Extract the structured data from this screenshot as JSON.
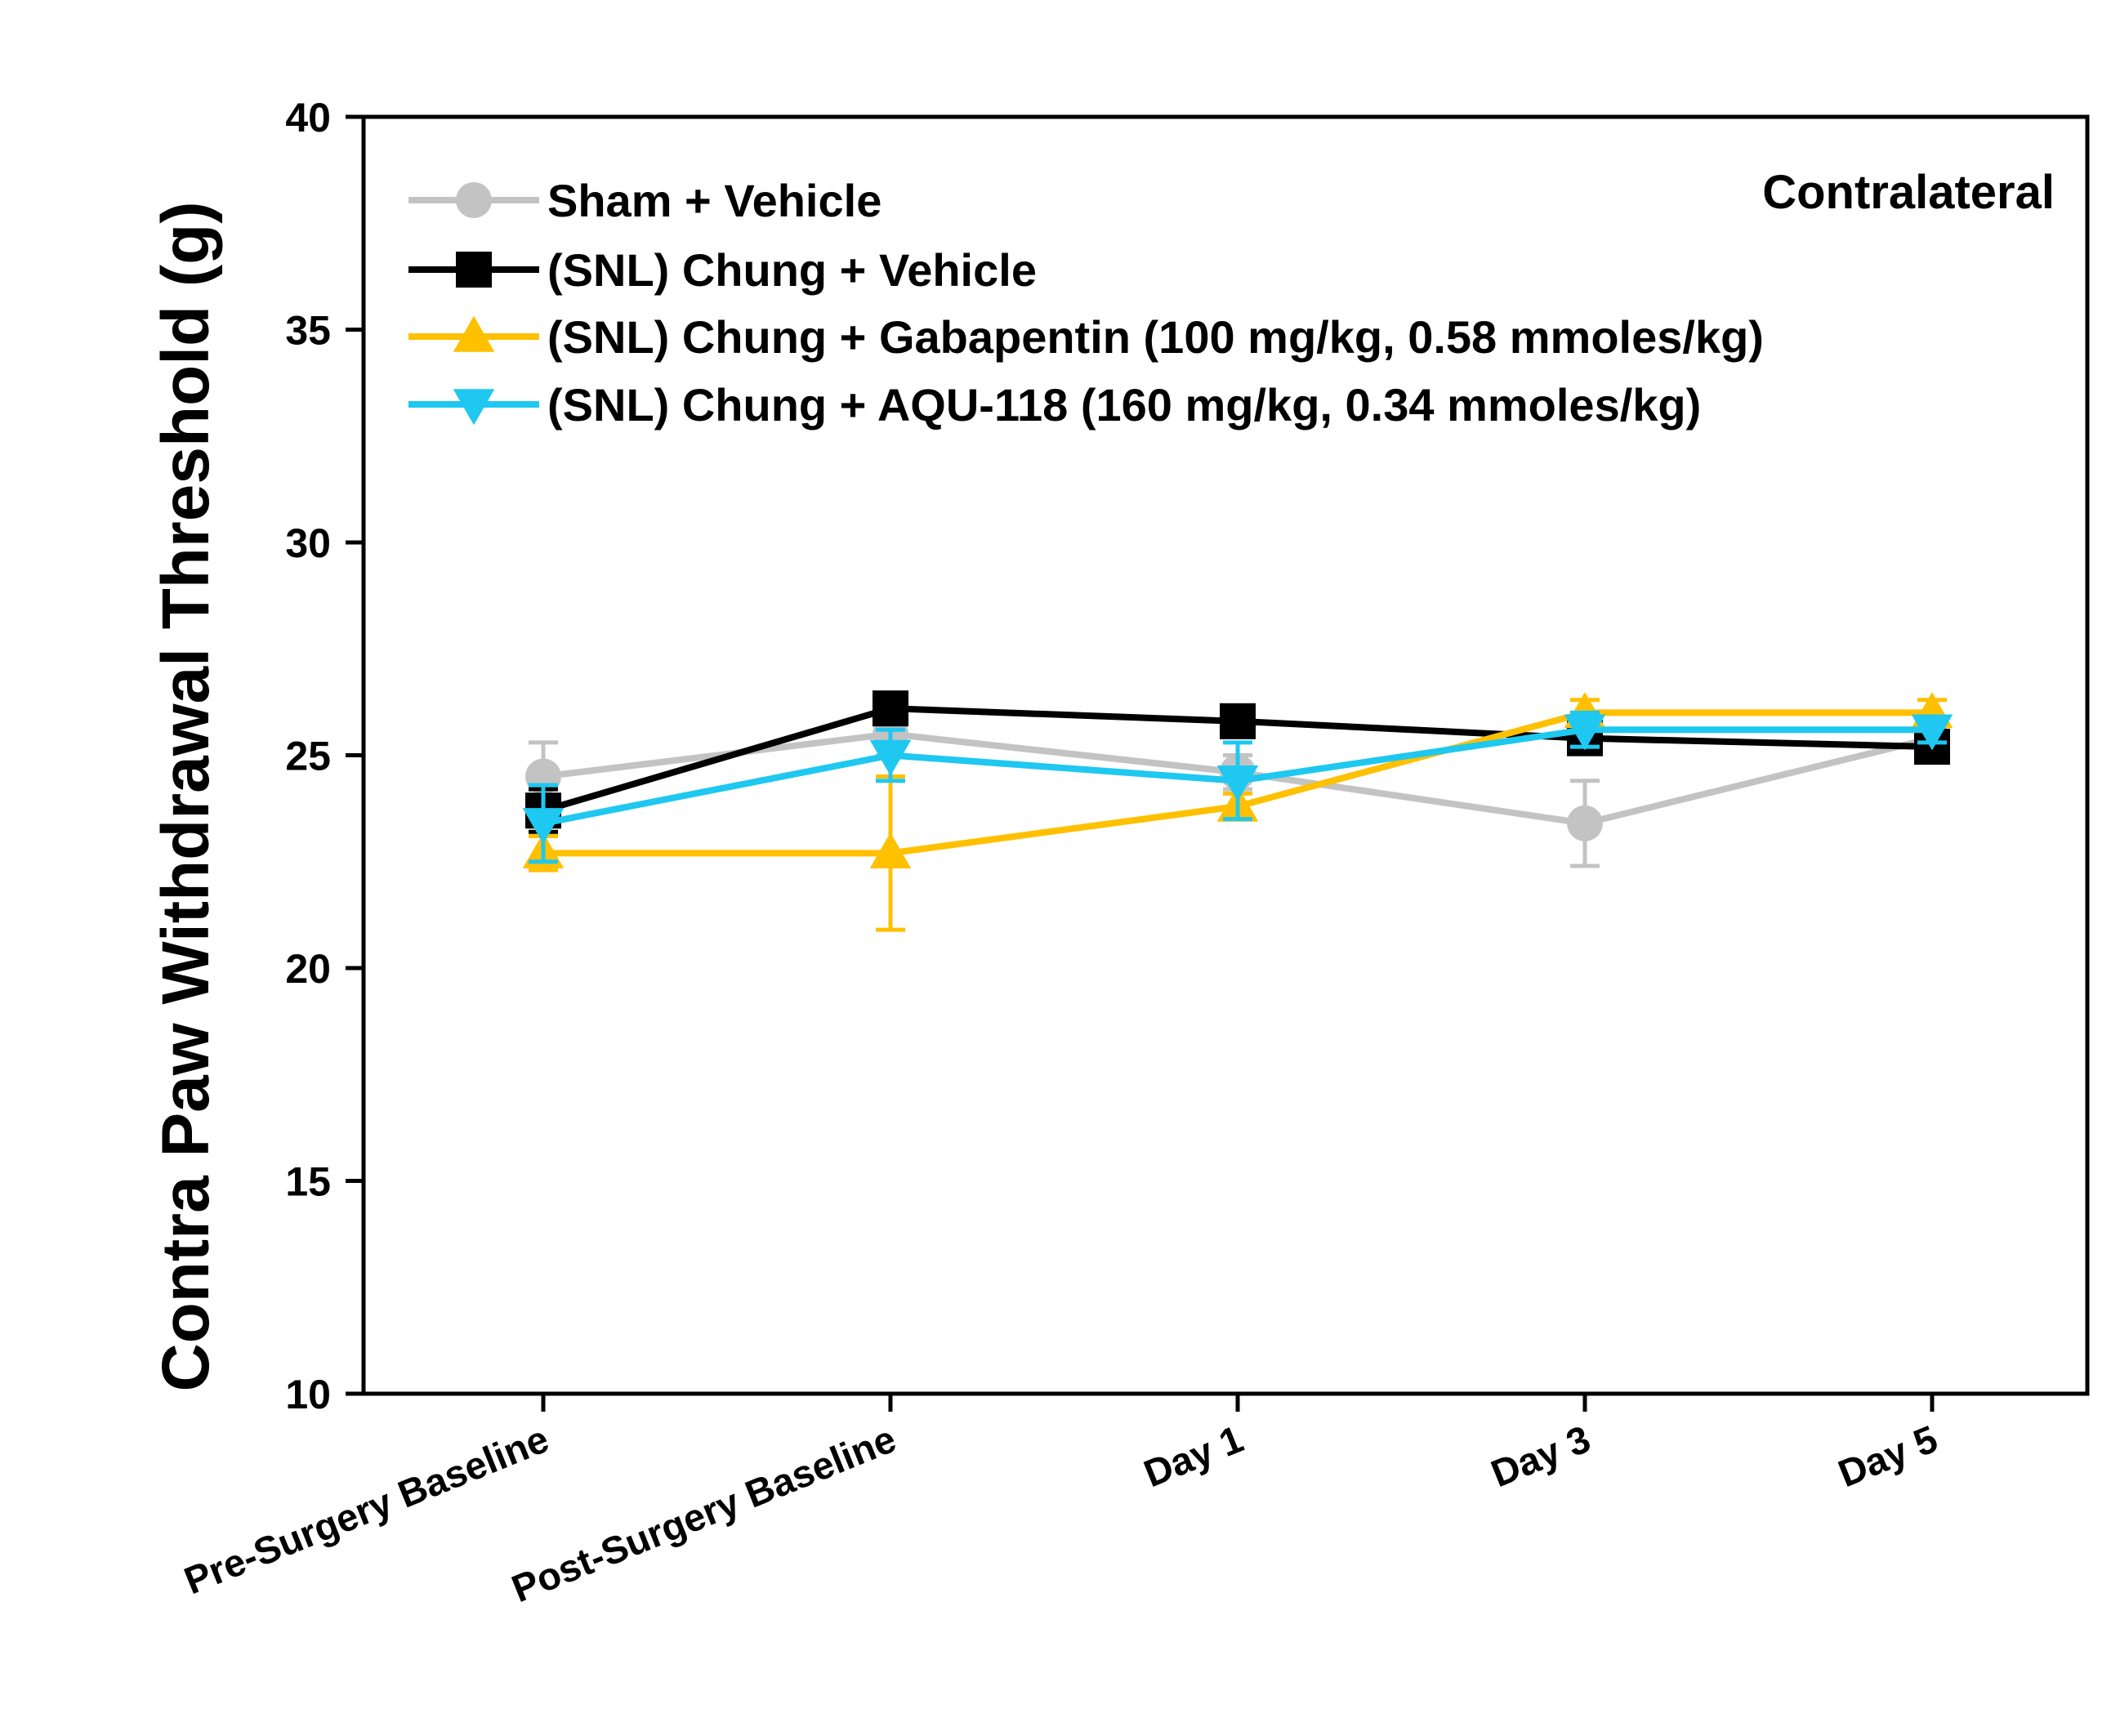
{
  "chart_data": {
    "type": "line",
    "ylabel": "Contra Paw Withdrawal Threshold (g)",
    "xlabel": "",
    "annotation": "Contralateral",
    "ylim": [
      10,
      40
    ],
    "yticks": [
      "10",
      "15",
      "20",
      "25",
      "30",
      "35",
      "40"
    ],
    "categories": [
      "Pre-Surgery Baseline",
      "Post-Surgery Baseline",
      "Day 1",
      "Day 3",
      "Day 5"
    ],
    "legend_position": "top-left",
    "grid": false,
    "series": [
      {
        "name": "Sham + Vehicle",
        "color": "#c3c3c3",
        "marker": "circle",
        "values": [
          24.5,
          25.5,
          24.6,
          23.4,
          25.4
        ],
        "errors": [
          0.8,
          0.5,
          0.4,
          1.0,
          0.3
        ]
      },
      {
        "name": "(SNL) Chung + Vehicle",
        "color": "#000000",
        "marker": "square",
        "values": [
          23.7,
          26.1,
          25.8,
          25.4,
          25.2
        ],
        "errors": [
          0.5,
          0.3,
          0.3,
          0.3,
          0.3
        ]
      },
      {
        "name": "(SNL) Chung + Gabapentin (100 mg/kg, 0.58 mmoles/kg)",
        "color": "#ffc000",
        "marker": "triangle-up",
        "values": [
          22.7,
          22.7,
          23.8,
          26.0,
          26.0
        ],
        "errors": [
          0.4,
          1.8,
          0.3,
          0.3,
          0.3
        ]
      },
      {
        "name": "(SNL) Chung + AQU-118 (160 mg/kg, 0.34 mmoles/kg)",
        "color": "#1ec8f0",
        "marker": "triangle-down",
        "values": [
          23.4,
          25.0,
          24.4,
          25.6,
          25.6
        ],
        "errors": [
          0.9,
          0.6,
          0.9,
          0.4,
          0.3
        ]
      }
    ]
  }
}
